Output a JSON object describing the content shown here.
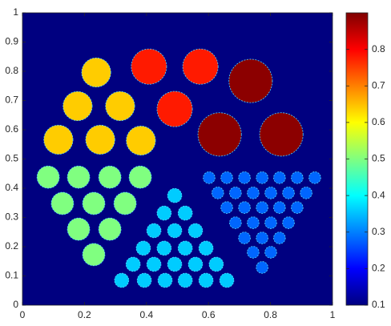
{
  "chart_data": {
    "type": "image",
    "colormap": "jet",
    "xlim": [
      0,
      1
    ],
    "ylim": [
      0,
      1
    ],
    "xticks": [
      0,
      0.2,
      0.4,
      0.6,
      0.8,
      1
    ],
    "yticks": [
      0,
      0.1,
      0.2,
      0.3,
      0.4,
      0.5,
      0.6,
      0.7,
      0.8,
      0.9,
      1
    ],
    "clim": [
      0.1,
      0.9
    ],
    "cticks": [
      0.1,
      0.2,
      0.3,
      0.4,
      0.5,
      0.6,
      0.7,
      0.8
    ],
    "background": 0.1,
    "groups": [
      {
        "value": 0.64,
        "radius": 0.047,
        "x": [
          0.238,
          0.178,
          0.315,
          0.116,
          0.251,
          0.382
        ],
        "y": [
          0.796,
          0.681,
          0.681,
          0.566,
          0.566,
          0.563
        ]
      },
      {
        "value": 0.78,
        "radius": 0.057,
        "x": [
          0.408,
          0.574,
          0.491
        ],
        "y": [
          0.816,
          0.816,
          0.671
        ]
      },
      {
        "value": 0.89,
        "radius": 0.07,
        "x": [
          0.736,
          0.636,
          0.835
        ],
        "y": [
          0.767,
          0.584,
          0.584
        ]
      },
      {
        "value": 0.5,
        "radius": 0.036,
        "x": [
          0.083,
          0.181,
          0.282,
          0.38,
          0.129,
          0.23,
          0.331,
          0.181,
          0.282,
          0.23
        ],
        "y": [
          0.438,
          0.438,
          0.438,
          0.438,
          0.348,
          0.348,
          0.348,
          0.26,
          0.26,
          0.173
        ]
      },
      {
        "value": 0.36,
        "radius": 0.023,
        "x": [
          0.32,
          0.393,
          0.46,
          0.525,
          0.592,
          0.659,
          0.357,
          0.424,
          0.491,
          0.558,
          0.625,
          0.39,
          0.457,
          0.525,
          0.592,
          0.424,
          0.491,
          0.558,
          0.457,
          0.525,
          0.491
        ],
        "y": [
          0.085,
          0.085,
          0.085,
          0.085,
          0.085,
          0.085,
          0.14,
          0.14,
          0.14,
          0.14,
          0.14,
          0.195,
          0.195,
          0.195,
          0.195,
          0.255,
          0.255,
          0.255,
          0.315,
          0.315,
          0.375
        ]
      },
      {
        "value": 0.28,
        "radius": 0.019,
        "x": [
          0.602,
          0.659,
          0.716,
          0.773,
          0.829,
          0.886,
          0.943,
          0.63,
          0.687,
          0.744,
          0.801,
          0.858,
          0.915,
          0.659,
          0.716,
          0.773,
          0.829,
          0.886,
          0.687,
          0.744,
          0.801,
          0.858,
          0.716,
          0.773,
          0.829,
          0.744,
          0.801,
          0.773
        ],
        "y": [
          0.436,
          0.436,
          0.436,
          0.436,
          0.436,
          0.436,
          0.436,
          0.384,
          0.384,
          0.384,
          0.384,
          0.384,
          0.384,
          0.334,
          0.334,
          0.334,
          0.334,
          0.334,
          0.282,
          0.282,
          0.282,
          0.282,
          0.23,
          0.23,
          0.23,
          0.181,
          0.181,
          0.129
        ]
      }
    ]
  }
}
